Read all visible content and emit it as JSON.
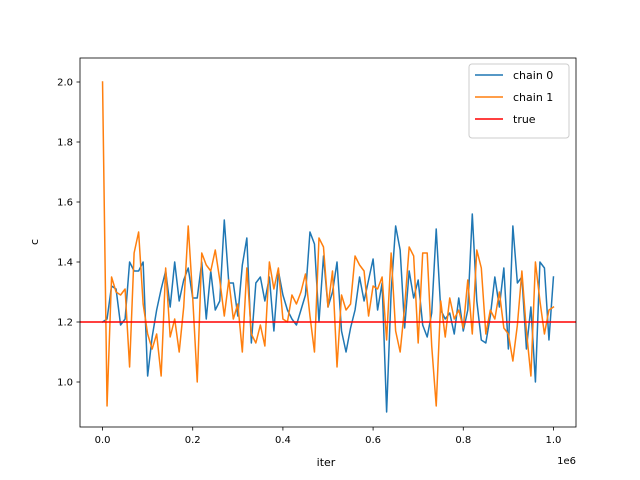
{
  "chart_data": {
    "type": "line",
    "xlabel": "iter",
    "ylabel": "c",
    "x_offset_label": "1e6",
    "xlim": [
      -0.05,
      1.05
    ],
    "ylim": [
      0.85,
      2.08
    ],
    "x_ticks": [
      0.0,
      0.2,
      0.4,
      0.6,
      0.8,
      1.0
    ],
    "x_tick_labels": [
      "0.0",
      "0.2",
      "0.4",
      "0.6",
      "0.8",
      "1.0"
    ],
    "y_ticks": [
      1.0,
      1.2,
      1.4,
      1.6,
      1.8,
      2.0
    ],
    "y_tick_labels": [
      "1.0",
      "1.2",
      "1.4",
      "1.6",
      "1.8",
      "2.0"
    ],
    "grid": false,
    "legend_position": "top-right",
    "x": [
      0.0,
      0.01,
      0.02,
      0.03,
      0.04,
      0.05,
      0.06,
      0.07,
      0.08,
      0.09,
      0.1,
      0.11,
      0.12,
      0.13,
      0.14,
      0.15,
      0.16,
      0.17,
      0.18,
      0.19,
      0.2,
      0.21,
      0.22,
      0.23,
      0.24,
      0.25,
      0.26,
      0.27,
      0.28,
      0.29,
      0.3,
      0.31,
      0.32,
      0.33,
      0.34,
      0.35,
      0.36,
      0.37,
      0.38,
      0.39,
      0.4,
      0.41,
      0.42,
      0.43,
      0.44,
      0.45,
      0.46,
      0.47,
      0.48,
      0.49,
      0.5,
      0.51,
      0.52,
      0.53,
      0.54,
      0.55,
      0.56,
      0.57,
      0.58,
      0.59,
      0.6,
      0.61,
      0.62,
      0.63,
      0.64,
      0.65,
      0.66,
      0.67,
      0.68,
      0.69,
      0.7,
      0.71,
      0.72,
      0.73,
      0.74,
      0.75,
      0.76,
      0.77,
      0.78,
      0.79,
      0.8,
      0.81,
      0.82,
      0.83,
      0.84,
      0.85,
      0.86,
      0.87,
      0.88,
      0.89,
      0.9,
      0.91,
      0.92,
      0.93,
      0.94,
      0.95,
      0.96,
      0.97,
      0.98,
      0.99,
      1.0
    ],
    "series": [
      {
        "name": "chain 0",
        "color": "#1f77b4",
        "values": [
          1.2,
          1.21,
          1.32,
          1.31,
          1.19,
          1.21,
          1.4,
          1.37,
          1.37,
          1.4,
          1.02,
          1.15,
          1.24,
          1.31,
          1.37,
          1.25,
          1.4,
          1.27,
          1.34,
          1.38,
          1.28,
          1.28,
          1.4,
          1.21,
          1.37,
          1.24,
          1.27,
          1.54,
          1.33,
          1.33,
          1.22,
          1.39,
          1.48,
          1.13,
          1.33,
          1.35,
          1.27,
          1.35,
          1.17,
          1.37,
          1.29,
          1.24,
          1.21,
          1.19,
          1.24,
          1.29,
          1.5,
          1.46,
          1.2,
          1.42,
          1.25,
          1.3,
          1.4,
          1.17,
          1.1,
          1.18,
          1.24,
          1.35,
          1.27,
          1.34,
          1.41,
          1.24,
          1.33,
          0.9,
          1.3,
          1.52,
          1.44,
          1.18,
          1.37,
          1.28,
          1.34,
          1.19,
          1.15,
          1.23,
          1.51,
          1.24,
          1.21,
          1.23,
          1.16,
          1.28,
          1.17,
          1.24,
          1.56,
          1.27,
          1.14,
          1.13,
          1.22,
          1.35,
          1.25,
          1.38,
          1.11,
          1.52,
          1.33,
          1.35,
          1.11,
          1.25,
          1.0,
          1.4,
          1.38,
          1.14,
          1.35
        ]
      },
      {
        "name": "chain 1",
        "color": "#ff7f0e",
        "values": [
          2.0,
          0.92,
          1.35,
          1.3,
          1.29,
          1.31,
          1.05,
          1.43,
          1.5,
          1.26,
          1.16,
          1.11,
          1.16,
          1.02,
          1.38,
          1.15,
          1.21,
          1.1,
          1.25,
          1.52,
          1.28,
          1.0,
          1.43,
          1.39,
          1.37,
          1.44,
          1.34,
          1.22,
          1.34,
          1.21,
          1.26,
          1.1,
          1.38,
          1.16,
          1.13,
          1.19,
          1.12,
          1.4,
          1.31,
          1.38,
          1.21,
          1.2,
          1.29,
          1.26,
          1.3,
          1.36,
          1.22,
          1.1,
          1.48,
          1.45,
          1.25,
          1.37,
          1.05,
          1.29,
          1.24,
          1.26,
          1.42,
          1.39,
          1.37,
          1.22,
          1.32,
          1.31,
          1.35,
          1.14,
          1.43,
          1.17,
          1.1,
          1.25,
          1.45,
          1.42,
          1.13,
          1.43,
          1.43,
          1.12,
          0.92,
          1.27,
          1.15,
          1.28,
          1.21,
          1.24,
          1.18,
          1.34,
          1.16,
          1.44,
          1.38,
          1.16,
          1.24,
          1.21,
          1.3,
          1.18,
          1.16,
          1.07,
          1.19,
          1.37,
          1.17,
          1.02,
          1.4,
          1.27,
          1.16,
          1.24,
          1.25
        ]
      }
    ],
    "reference_lines": [
      {
        "name": "true",
        "color": "#ff0000",
        "y": 1.2
      }
    ],
    "legend": [
      {
        "label": "chain 0",
        "color": "#1f77b4"
      },
      {
        "label": "chain 1",
        "color": "#ff7f0e"
      },
      {
        "label": "true",
        "color": "#ff0000"
      }
    ]
  }
}
